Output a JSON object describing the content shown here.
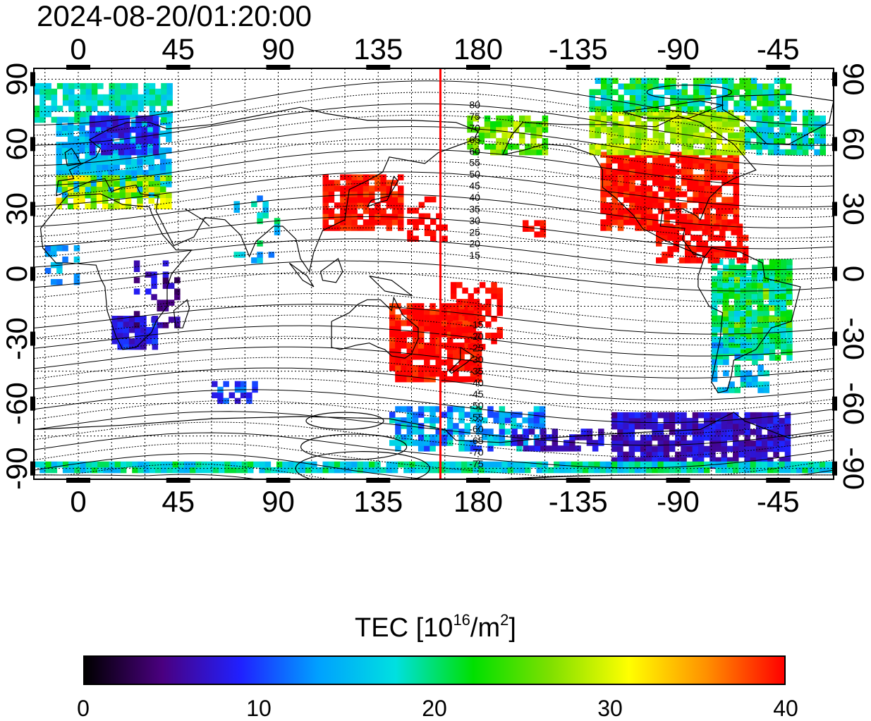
{
  "timestamp": "2024-08-20/01:20:00",
  "map": {
    "lon_ticks_top": [
      "0",
      "45",
      "90",
      "135",
      "180",
      "-135",
      "-90",
      "-45"
    ],
    "lon_ticks_bottom": [
      "0",
      "45",
      "90",
      "135",
      "180",
      "-135",
      "-90",
      "-45"
    ],
    "lat_ticks_left": [
      "90",
      "60",
      "30",
      "0",
      "-30",
      "-60",
      "-90"
    ],
    "lat_ticks_right": [
      "90",
      "60",
      "30",
      "0",
      "-30",
      "-60",
      "-90"
    ],
    "lon_range": [
      -20,
      340
    ],
    "lat_range": [
      -95,
      95
    ],
    "marker_line_lon": 163,
    "marker_line_color": "#ff0000",
    "contour_labels_north": [
      "80",
      "75",
      "70",
      "65",
      "60",
      "55",
      "50",
      "45",
      "40",
      "35",
      "30",
      "25",
      "20",
      "15"
    ],
    "contour_labels_south": [
      "-15",
      "-20",
      "-25",
      "-30",
      "-35",
      "-40",
      "-45",
      "-50",
      "-55",
      "-60",
      "-65",
      "-70",
      "-75"
    ],
    "tec_regions": [
      {
        "region": "north-america",
        "lon_range": [
          -125,
          -65
        ],
        "lat_range": [
          20,
          55
        ],
        "tec": 40
      },
      {
        "region": "canada",
        "lon_range": [
          -130,
          -60
        ],
        "lat_range": [
          55,
          75
        ],
        "tec": 28
      },
      {
        "region": "east-asia",
        "lon_range": [
          110,
          145
        ],
        "lat_range": [
          20,
          45
        ],
        "tec": 40
      },
      {
        "region": "australia-nz",
        "lon_range": [
          140,
          180
        ],
        "lat_range": [
          -50,
          -15
        ],
        "tec": 40
      },
      {
        "region": "europe",
        "lon_range": [
          -10,
          40
        ],
        "lat_range": [
          35,
          70
        ],
        "tec": 15
      },
      {
        "region": "southern-africa",
        "lon_range": [
          15,
          35
        ],
        "lat_range": [
          -35,
          -20
        ],
        "tec": 8
      },
      {
        "region": "antarctica",
        "lon_range": [
          -120,
          -40
        ],
        "lat_range": [
          -90,
          -65
        ],
        "tec": 7
      },
      {
        "region": "south-america",
        "lon_range": [
          -75,
          -40
        ],
        "lat_range": [
          -40,
          5
        ],
        "tec": 20
      }
    ]
  },
  "colorbar": {
    "title_prefix": "TEC  [10",
    "title_exp1": "16",
    "title_mid": "/m",
    "title_exp2": "2",
    "title_suffix": "]",
    "min": 0,
    "max": 40,
    "tick_labels": [
      "0",
      "10",
      "20",
      "30",
      "40"
    ],
    "colors": [
      "#000000",
      "#4a0080",
      "#2020ff",
      "#00a0ff",
      "#00e0e0",
      "#00e000",
      "#80e000",
      "#ffff00",
      "#ff9000",
      "#ff0000"
    ]
  }
}
